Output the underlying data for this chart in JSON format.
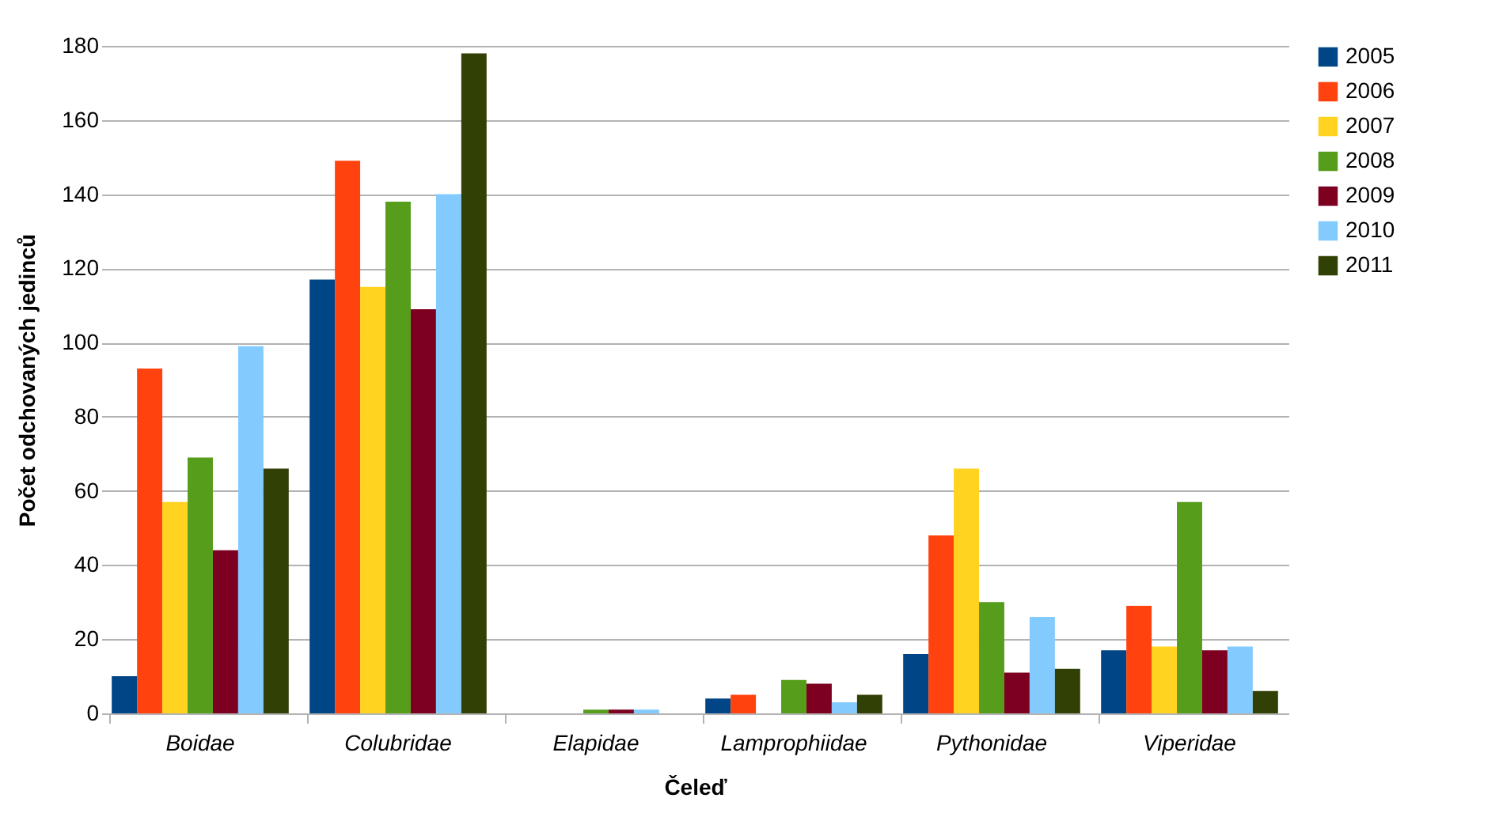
{
  "chart_data": {
    "type": "bar",
    "xlabel": "Čeleď",
    "ylabel": "Počet odchovaných jedinců",
    "categories": [
      "Boidae",
      "Colubridae",
      "Elapidae",
      "Lamprophiidae",
      "Pythonidae",
      "Viperidae"
    ],
    "series": [
      {
        "name": "2005",
        "color": "#004586",
        "values": [
          10,
          117,
          0,
          4,
          16,
          17
        ]
      },
      {
        "name": "2006",
        "color": "#ff420e",
        "values": [
          93,
          149,
          0,
          5,
          48,
          29
        ]
      },
      {
        "name": "2007",
        "color": "#ffd320",
        "values": [
          57,
          115,
          0,
          0,
          66,
          18
        ]
      },
      {
        "name": "2008",
        "color": "#579d1c",
        "values": [
          69,
          138,
          1,
          9,
          30,
          57
        ]
      },
      {
        "name": "2009",
        "color": "#7e0021",
        "values": [
          44,
          109,
          1,
          8,
          11,
          17
        ]
      },
      {
        "name": "2010",
        "color": "#83caff",
        "values": [
          99,
          140,
          1,
          3,
          26,
          18
        ]
      },
      {
        "name": "2011",
        "color": "#314004",
        "values": [
          66,
          178,
          0,
          5,
          12,
          6
        ]
      }
    ],
    "ylim": [
      0,
      180
    ],
    "yticks": [
      0,
      20,
      40,
      60,
      80,
      100,
      120,
      140,
      160,
      180
    ],
    "grid": "y",
    "legend": "right"
  }
}
